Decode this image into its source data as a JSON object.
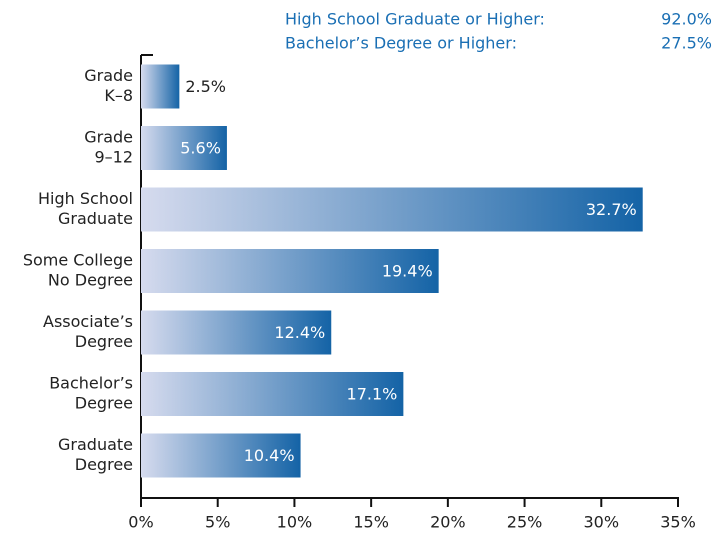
{
  "annotations": [
    {
      "text": "High School Graduate or Higher:",
      "value": "92.0%"
    },
    {
      "text": "Bachelor’s Degree or Higher:",
      "value": "27.5%"
    }
  ],
  "chart_data": {
    "type": "barh",
    "categories": [
      [
        "Grade",
        "K–8"
      ],
      [
        "Grade",
        "9–12"
      ],
      [
        "High School",
        "Graduate"
      ],
      [
        "Some College",
        "No Degree"
      ],
      [
        "Associate’s",
        "Degree"
      ],
      [
        "Bachelor’s",
        "Degree"
      ],
      [
        "Graduate",
        "Degree"
      ]
    ],
    "values": [
      2.5,
      5.6,
      32.7,
      19.4,
      12.4,
      17.1,
      10.4
    ],
    "value_labels": [
      "2.5%",
      "5.6%",
      "32.7%",
      "19.4%",
      "12.4%",
      "17.1%",
      "10.4%"
    ],
    "color": "#1463a6",
    "xlim": [
      0,
      35
    ],
    "xticks": [
      {
        "value": 0,
        "label": "0%"
      },
      {
        "value": 5,
        "label": "5%"
      },
      {
        "value": 10,
        "label": "10%"
      },
      {
        "value": 15,
        "label": "15%"
      },
      {
        "value": 20,
        "label": "20%"
      },
      {
        "value": 25,
        "label": "25%"
      },
      {
        "value": 30,
        "label": "30%"
      },
      {
        "value": 35,
        "label": "35%"
      }
    ]
  }
}
